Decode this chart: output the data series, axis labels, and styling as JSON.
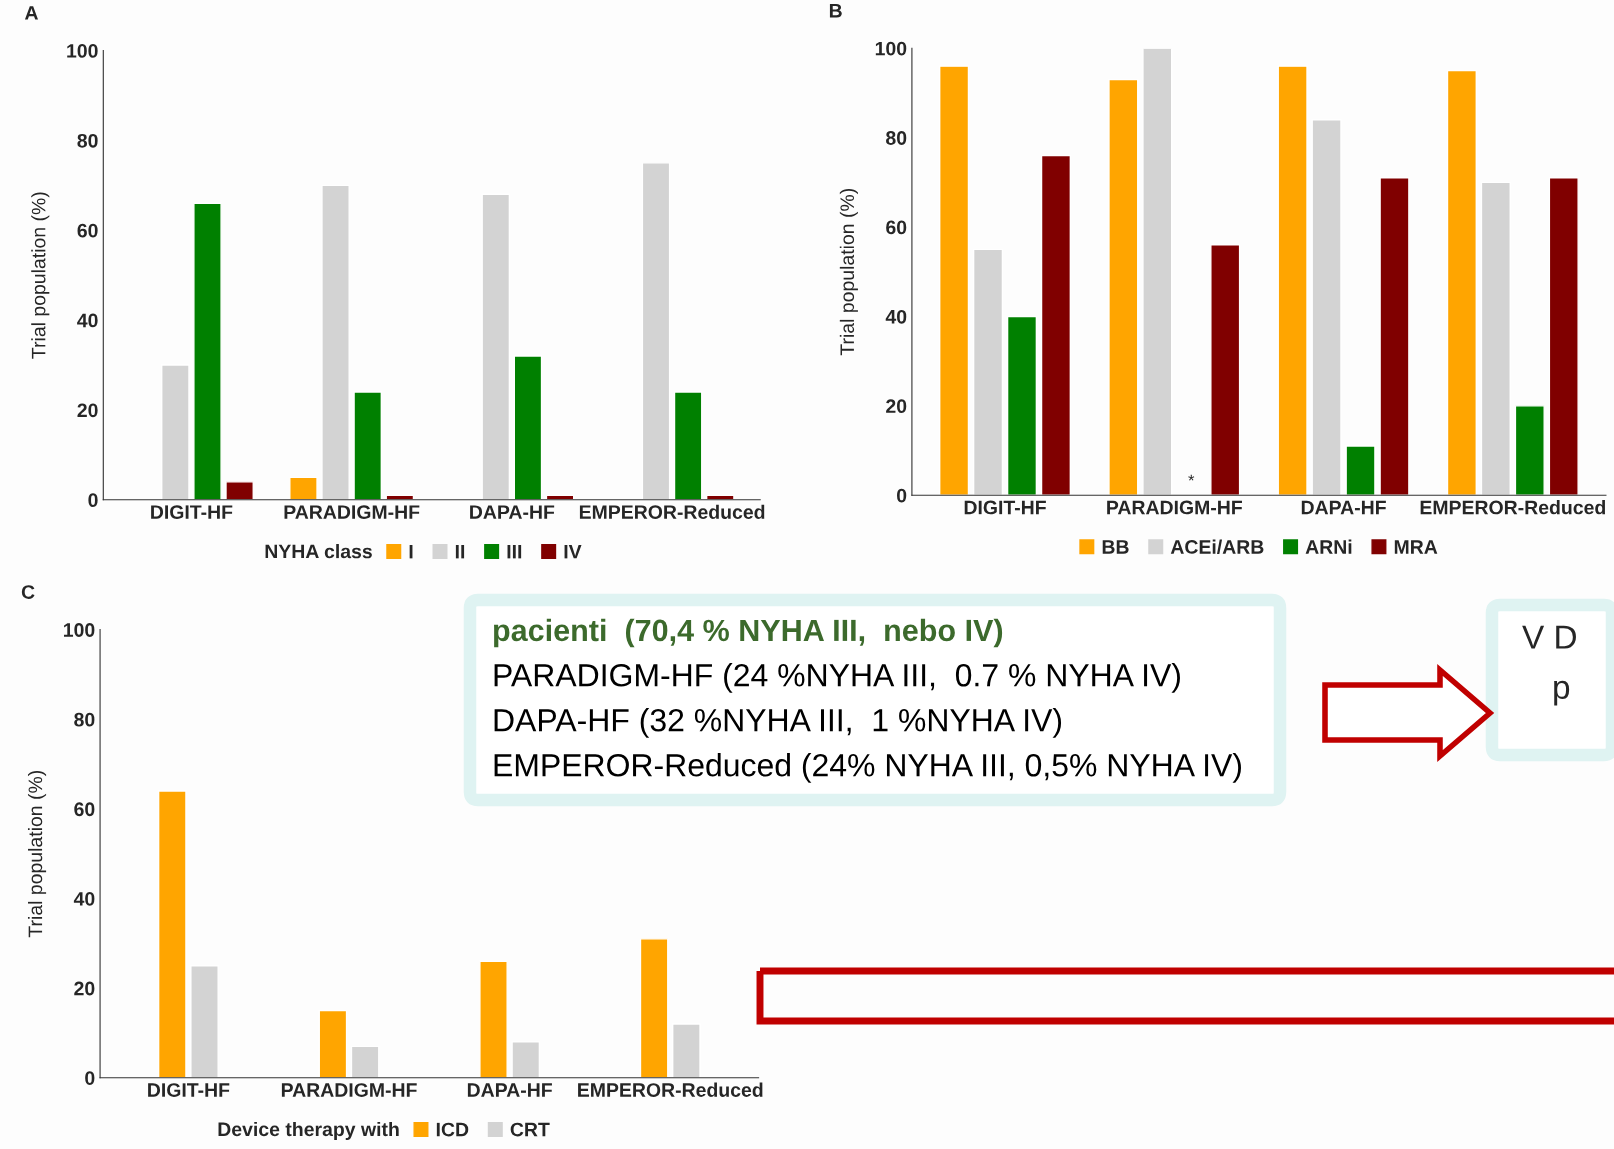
{
  "chart_data": [
    {
      "type": "bar",
      "title": "A",
      "ylabel": "Trial population (%)",
      "legend_title": "NYHA class",
      "legend": "bottom",
      "categories": [
        "DIGIT-HF",
        "PARADIGM-HF",
        "DAPA-HF",
        "EMPEROR-Reduced"
      ],
      "series": [
        {
          "name": "I",
          "color": "#ffa500",
          "values": [
            null,
            5,
            null,
            null
          ]
        },
        {
          "name": "II",
          "color": "#d3d3d3",
          "values": [
            30,
            70,
            68,
            75
          ]
        },
        {
          "name": "III",
          "color": "#008000",
          "values": [
            66,
            24,
            32,
            24
          ]
        },
        {
          "name": "IV",
          "color": "#800000",
          "values": [
            4,
            1,
            1,
            1
          ]
        }
      ],
      "ylim": [
        0,
        100
      ],
      "yticks": [
        0,
        20,
        40,
        60,
        80,
        100
      ],
      "grid": false
    },
    {
      "type": "bar",
      "title": "B",
      "ylabel": "Trial population (%)",
      "legend": "bottom",
      "categories": [
        "DIGIT-HF",
        "PARADIGM-HF",
        "DAPA-HF",
        "EMPEROR-Reduced"
      ],
      "series": [
        {
          "name": "BB",
          "color": "#ffa500",
          "values": [
            96,
            93,
            96,
            95
          ]
        },
        {
          "name": "ACEi/ARB",
          "color": "#d3d3d3",
          "values": [
            55,
            100,
            84,
            70
          ]
        },
        {
          "name": "ARNi",
          "color": "#008000",
          "values": [
            40,
            null,
            11,
            20
          ]
        },
        {
          "name": "MRA",
          "color": "#800000",
          "values": [
            76,
            56,
            71,
            71
          ]
        }
      ],
      "annotations": [
        {
          "text": "*",
          "x": "PARADIGM-HF",
          "y": 0
        }
      ],
      "ylim": [
        0,
        100
      ],
      "yticks": [
        0,
        20,
        40,
        60,
        80,
        100
      ],
      "grid": false
    },
    {
      "type": "bar",
      "title": "C",
      "ylabel": "Trial population (%)",
      "legend_title": "Device therapy with",
      "legend": "bottom",
      "categories": [
        "DIGIT-HF",
        "PARADIGM-HF",
        "DAPA-HF",
        "EMPEROR-Reduced"
      ],
      "series": [
        {
          "name": "ICD",
          "color": "#ffa500",
          "values": [
            64,
            15,
            26,
            31
          ]
        },
        {
          "name": "CRT",
          "color": "#d3d3d3",
          "values": [
            25,
            7,
            8,
            12
          ]
        }
      ],
      "ylim": [
        0,
        100
      ],
      "yticks": [
        0,
        20,
        40,
        60,
        80,
        100
      ],
      "grid": false
    },
    {
      "type": "other",
      "annotations": [
        "pacienti  (70,4 % NYHA III,  nebo IV)",
        "PARADIGM-HF (24 %NYHA III,  0.7 % NYHA IV)",
        "DAPA-HF (32 %NYHA III,  1 %NYHA IV)",
        "EMPEROR-Reduced (24% NYHA III, 0,5% NYHA IV)",
        "V D",
        "p"
      ]
    }
  ]
}
